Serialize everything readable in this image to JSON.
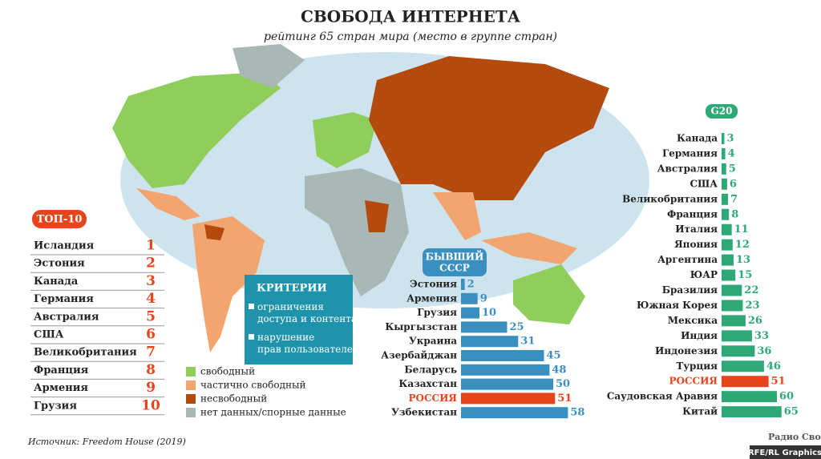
{
  "title": "СВОБОДА ИНТЕРНЕТА",
  "subtitle": "рейтинг 65 стран мира (место в группе стран)",
  "top10": {
    "title": "ТОП-10",
    "rows": [
      {
        "country": "Исландия",
        "rank": 1
      },
      {
        "country": "Эстония",
        "rank": 2
      },
      {
        "country": "Канада",
        "rank": 3
      },
      {
        "country": "Германия",
        "rank": 4
      },
      {
        "country": "Австралия",
        "rank": 5
      },
      {
        "country": "США",
        "rank": 6
      },
      {
        "country": "Великобритания",
        "rank": 7
      },
      {
        "country": "Франция",
        "rank": 8
      },
      {
        "country": "Армения",
        "rank": 9
      },
      {
        "country": "Грузия",
        "rank": 10
      }
    ]
  },
  "criteria": {
    "title": "КРИТЕРИИ",
    "items": [
      "ограничения доступа и контента",
      "нарушение прав пользователей"
    ]
  },
  "legend": [
    {
      "label": "свободный",
      "color": "#8fce5a"
    },
    {
      "label": "частично свободный",
      "color": "#f3a56f"
    },
    {
      "label": "несвободный",
      "color": "#b54a0f"
    },
    {
      "label": "нет данных/спорные данные",
      "color": "#a9b8b4"
    }
  ],
  "chart_data": [
    {
      "type": "bar",
      "title": "БЫВШИЙ СССР",
      "orientation": "horizontal",
      "color": "#3a8fc1",
      "categories": [
        "Эстония",
        "Армения",
        "Грузия",
        "Кыргызстан",
        "Украина",
        "Азербайджан",
        "Беларусь",
        "Казахстан",
        "РОССИЯ",
        "Узбекистан"
      ],
      "values": [
        2,
        9,
        10,
        25,
        31,
        45,
        48,
        50,
        51,
        58
      ],
      "colors": [
        "#3a8fc1",
        "#3a8fc1",
        "#3a8fc1",
        "#3a8fc1",
        "#3a8fc1",
        "#3a8fc1",
        "#3a8fc1",
        "#3a8fc1",
        "#e8441c",
        "#3a8fc1"
      ]
    },
    {
      "type": "bar",
      "title": "G20",
      "orientation": "horizontal",
      "color": "#2fa878",
      "categories": [
        "Канада",
        "Германия",
        "Австралия",
        "США",
        "Великобритания",
        "Франция",
        "Италия",
        "Япония",
        "Аргентина",
        "ЮАР",
        "Бразилия",
        "Южная Корея",
        "Мексика",
        "Индия",
        "Индонезия",
        "Турция",
        "РОССИЯ",
        "Саудовская Аравия",
        "Китай"
      ],
      "values": [
        3,
        4,
        5,
        6,
        7,
        8,
        11,
        12,
        13,
        15,
        22,
        23,
        26,
        33,
        36,
        46,
        51,
        60,
        65
      ],
      "colors": [
        "#2fa878",
        "#2fa878",
        "#2fa878",
        "#2fa878",
        "#2fa878",
        "#2fa878",
        "#2fa878",
        "#2fa878",
        "#2fa878",
        "#2fa878",
        "#2fa878",
        "#2fa878",
        "#2fa878",
        "#2fa878",
        "#2fa878",
        "#2fa878",
        "#e8441c",
        "#2fa878",
        "#2fa878"
      ]
    }
  ],
  "source": "Источник: Freedom House (2019)",
  "logo": {
    "name": "Радио Свобода",
    "credit": "RFE/RL Graphics"
  }
}
